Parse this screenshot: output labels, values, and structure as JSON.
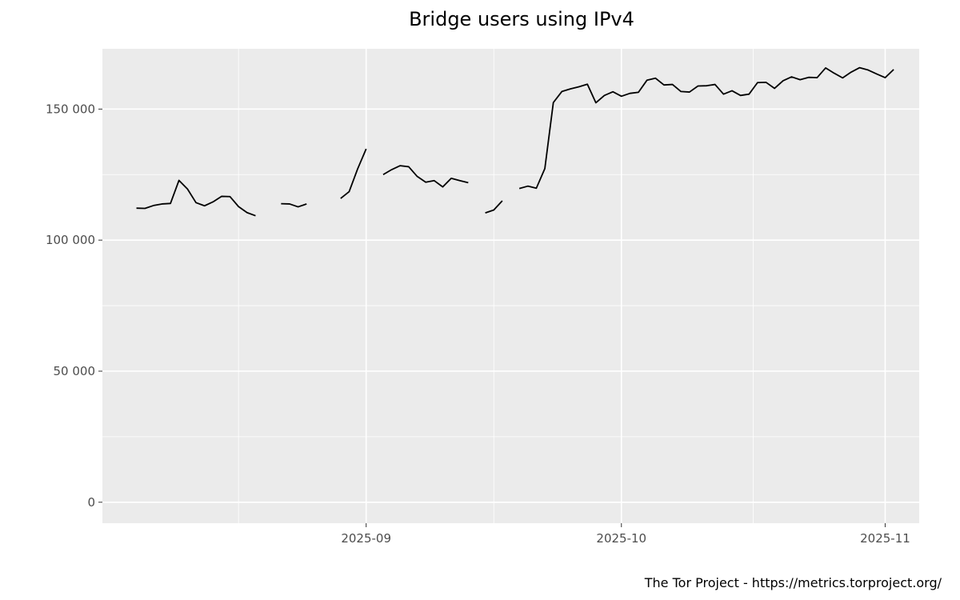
{
  "chart_data": {
    "type": "line",
    "title": "Bridge users using IPv4",
    "xlabel": "",
    "ylabel": "",
    "x_axis": {
      "type": "date",
      "range": [
        "2025-08-01",
        "2025-11-05"
      ],
      "ticks": [
        "2025-09-01",
        "2025-10-01",
        "2025-11-01"
      ],
      "tick_labels": [
        "2025-09",
        "2025-10",
        "2025-11"
      ]
    },
    "y_axis": {
      "range": [
        -8000,
        173000
      ],
      "ticks": [
        0,
        50000,
        100000,
        150000
      ],
      "tick_labels": [
        "0",
        "50 000",
        "100 000",
        "150 000"
      ]
    },
    "grid": true,
    "legend": "none",
    "line_color": "#000000",
    "panel_background": "#ebebeb",
    "grid_color": "#ffffff",
    "series": [
      {
        "segments": [
          [
            [
              "2025-08-05",
              112200
            ],
            [
              "2025-08-06",
              112100
            ],
            [
              "2025-08-07",
              113200
            ],
            [
              "2025-08-08",
              113800
            ],
            [
              "2025-08-09",
              114000
            ],
            [
              "2025-08-10",
              122800
            ],
            [
              "2025-08-11",
              119500
            ],
            [
              "2025-08-12",
              114300
            ],
            [
              "2025-08-13",
              113100
            ],
            [
              "2025-08-14",
              114600
            ],
            [
              "2025-08-15",
              116700
            ],
            [
              "2025-08-16",
              116600
            ],
            [
              "2025-08-17",
              112800
            ],
            [
              "2025-08-18",
              110500
            ],
            [
              "2025-08-19",
              109300
            ]
          ],
          [
            [
              "2025-08-22",
              113900
            ],
            [
              "2025-08-23",
              113800
            ],
            [
              "2025-08-24",
              112700
            ],
            [
              "2025-08-25",
              113800
            ]
          ],
          [
            [
              "2025-08-29",
              115900
            ],
            [
              "2025-08-30",
              118500
            ],
            [
              "2025-08-31",
              127200
            ],
            [
              "2025-09-01",
              134800
            ]
          ],
          [
            [
              "2025-09-03",
              125000
            ],
            [
              "2025-09-04",
              126900
            ],
            [
              "2025-09-05",
              128400
            ],
            [
              "2025-09-06",
              128000
            ],
            [
              "2025-09-07",
              124300
            ],
            [
              "2025-09-08",
              122100
            ],
            [
              "2025-09-09",
              122700
            ],
            [
              "2025-09-10",
              120300
            ],
            [
              "2025-09-11",
              123600
            ],
            [
              "2025-09-12",
              122700
            ],
            [
              "2025-09-13",
              121900
            ]
          ],
          [
            [
              "2025-09-15",
              110400
            ],
            [
              "2025-09-16",
              111500
            ],
            [
              "2025-09-17",
              115000
            ]
          ],
          [
            [
              "2025-09-19",
              119700
            ],
            [
              "2025-09-20",
              120600
            ],
            [
              "2025-09-21",
              119800
            ],
            [
              "2025-09-22",
              127300
            ],
            [
              "2025-09-23",
              152500
            ],
            [
              "2025-09-24",
              156700
            ],
            [
              "2025-09-25",
              157700
            ],
            [
              "2025-09-26",
              158500
            ],
            [
              "2025-09-27",
              159500
            ],
            [
              "2025-09-28",
              152400
            ],
            [
              "2025-09-29",
              155200
            ],
            [
              "2025-09-30",
              156600
            ],
            [
              "2025-10-01",
              154900
            ],
            [
              "2025-10-02",
              156000
            ],
            [
              "2025-10-03",
              156400
            ],
            [
              "2025-10-04",
              161000
            ],
            [
              "2025-10-05",
              161800
            ],
            [
              "2025-10-06",
              159200
            ],
            [
              "2025-10-07",
              159400
            ],
            [
              "2025-10-08",
              156700
            ],
            [
              "2025-10-09",
              156500
            ],
            [
              "2025-10-10",
              158800
            ],
            [
              "2025-10-11",
              158900
            ],
            [
              "2025-10-12",
              159400
            ],
            [
              "2025-10-13",
              155700
            ],
            [
              "2025-10-14",
              157000
            ],
            [
              "2025-10-15",
              155200
            ],
            [
              "2025-10-16",
              155700
            ],
            [
              "2025-10-17",
              160100
            ],
            [
              "2025-10-18",
              160200
            ],
            [
              "2025-10-19",
              157900
            ],
            [
              "2025-10-20",
              160800
            ],
            [
              "2025-10-21",
              162300
            ],
            [
              "2025-10-22",
              161200
            ],
            [
              "2025-10-23",
              162100
            ],
            [
              "2025-10-24",
              162000
            ],
            [
              "2025-10-25",
              165700
            ],
            [
              "2025-10-26",
              163700
            ],
            [
              "2025-10-27",
              161900
            ],
            [
              "2025-10-28",
              164100
            ],
            [
              "2025-10-29",
              165800
            ],
            [
              "2025-10-30",
              164900
            ],
            [
              "2025-10-31",
              163400
            ],
            [
              "2025-11-01",
              162000
            ],
            [
              "2025-11-02",
              165100
            ]
          ]
        ]
      }
    ]
  },
  "footer": {
    "credit": "The Tor Project - https://metrics.torproject.org/"
  }
}
